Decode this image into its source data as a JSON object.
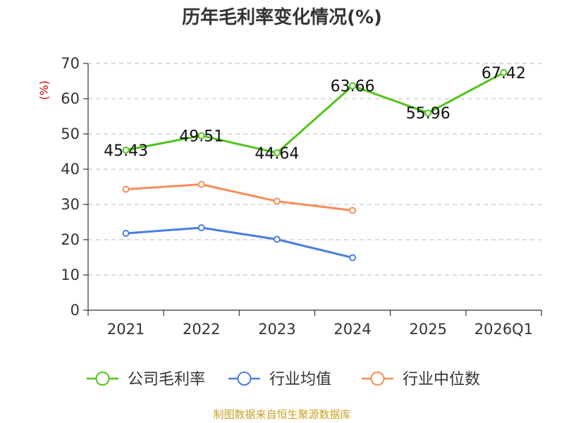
{
  "chart_data": {
    "type": "line",
    "title": "历年毛利率变化情况(%)",
    "ylabel": "(%)",
    "xlabel": "",
    "ylim": [
      0,
      70
    ],
    "yticks": [
      0,
      10,
      20,
      30,
      40,
      50,
      60,
      70
    ],
    "grid": true,
    "legend": "bottom",
    "categories": [
      "2021",
      "2022",
      "2023",
      "2024",
      "2025",
      "2026Q1"
    ],
    "series": [
      {
        "name": "公司毛利率",
        "color": "#52c41a",
        "values": [
          45.43,
          49.51,
          44.64,
          63.66,
          55.96,
          67.42
        ],
        "labels": [
          "45.43",
          "49.51",
          "44.64",
          "63.66",
          "55.96",
          "67.42"
        ]
      },
      {
        "name": "行业均值",
        "color": "#4a7ee0",
        "values": [
          21.8,
          23.4,
          20.1,
          14.9,
          null,
          null
        ]
      },
      {
        "name": "行业中位数",
        "color": "#f58d5a",
        "values": [
          34.3,
          35.7,
          30.9,
          28.3,
          null,
          null
        ]
      }
    ]
  },
  "source": "制图数据来自恒生聚源数据库"
}
